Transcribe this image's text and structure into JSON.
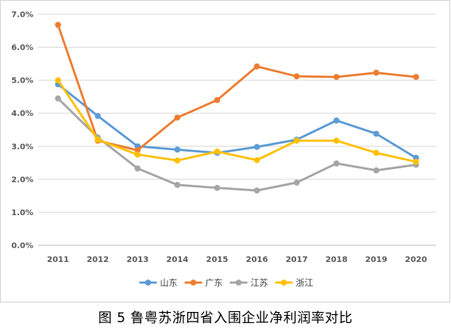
{
  "caption": "图 5  鲁粤苏浙四省入围企业净利润率对比",
  "chart_data": {
    "type": "line",
    "title": "",
    "xlabel": "",
    "ylabel": "",
    "categories": [
      "2011",
      "2012",
      "2013",
      "2014",
      "2015",
      "2016",
      "2017",
      "2018",
      "2019",
      "2020"
    ],
    "y_ticks": [
      "0.0%",
      "1.0%",
      "2.0%",
      "3.0%",
      "4.0%",
      "5.0%",
      "6.0%",
      "7.0%"
    ],
    "ylim": [
      0,
      7
    ],
    "grid": true,
    "legend_position": "bottom",
    "series": [
      {
        "name": "山东",
        "color": "#5b9bd5",
        "values": [
          4.88,
          3.92,
          3.0,
          2.9,
          2.8,
          2.98,
          3.2,
          3.78,
          3.38,
          2.65
        ]
      },
      {
        "name": "广东",
        "color": "#ed7d31",
        "values": [
          6.68,
          3.17,
          2.88,
          3.87,
          4.4,
          5.42,
          5.12,
          5.1,
          5.23,
          5.1
        ]
      },
      {
        "name": "江苏",
        "color": "#a5a5a5",
        "values": [
          4.45,
          3.27,
          2.33,
          1.83,
          1.74,
          1.66,
          1.9,
          2.48,
          2.27,
          2.44
        ]
      },
      {
        "name": "浙江",
        "color": "#ffc000",
        "values": [
          5.0,
          3.2,
          2.75,
          2.57,
          2.84,
          2.58,
          3.17,
          3.17,
          2.8,
          2.53
        ]
      }
    ]
  }
}
